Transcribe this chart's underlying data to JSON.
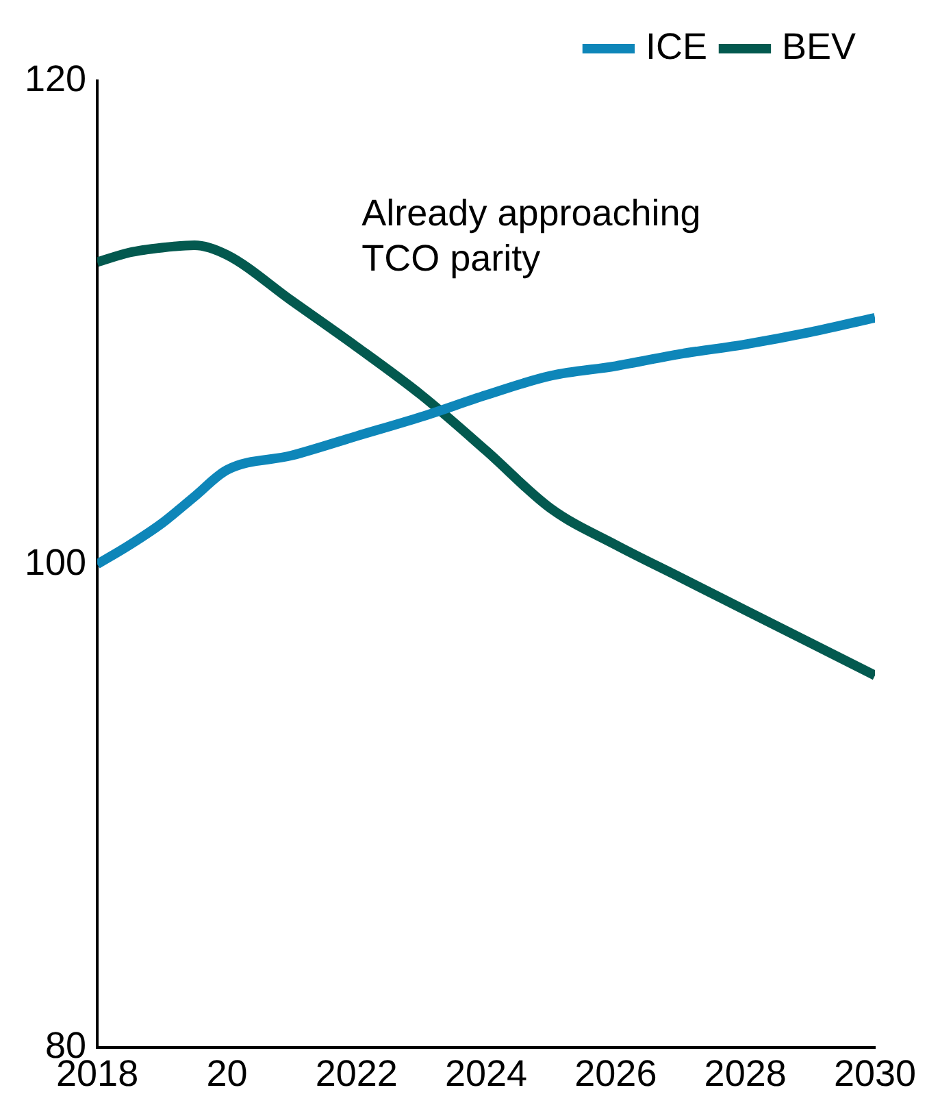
{
  "chart_data": {
    "type": "line",
    "x": [
      2018,
      2018.5,
      2019,
      2019.5,
      2020,
      2021,
      2022,
      2023,
      2024,
      2025,
      2026,
      2027,
      2028,
      2029,
      2030
    ],
    "series": [
      {
        "name": "ICE",
        "color": "#0e86b9",
        "values": [
          100,
          100.8,
          101.7,
          102.8,
          103.9,
          104.5,
          105.3,
          106.1,
          107,
          107.8,
          108.2,
          108.7,
          109.1,
          109.6,
          110.2
        ]
      },
      {
        "name": "BEV",
        "color": "#03594f",
        "values": [
          112.5,
          112.9,
          113.1,
          113.2,
          112.8,
          110.9,
          109,
          107,
          104.7,
          102.3,
          100.8,
          99.45,
          98.1,
          96.75,
          95.4
        ]
      }
    ],
    "xlim": [
      2018,
      2030
    ],
    "xticks": [
      2018,
      {
        "value": 2020,
        "label": "20"
      },
      2022,
      2024,
      2026,
      2028,
      2030
    ],
    "ylim": [
      80,
      120
    ],
    "yticks": [
      80,
      100,
      120
    ],
    "annotations": [
      "Already approaching\nTCO parity"
    ],
    "grid": false,
    "legend": "top right",
    "marker": "none",
    "line_style": "solid"
  }
}
